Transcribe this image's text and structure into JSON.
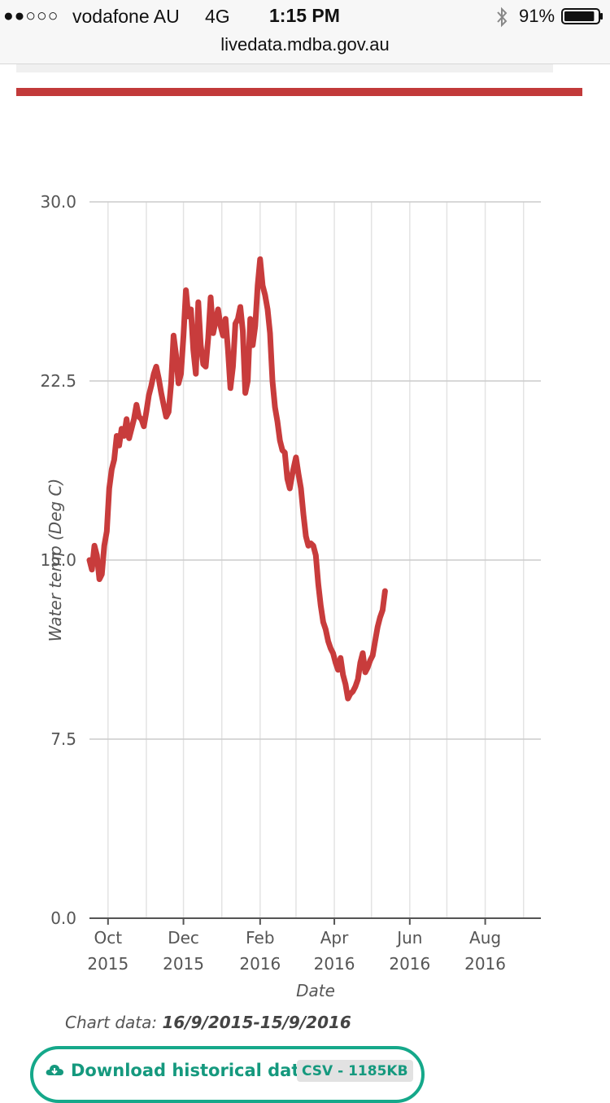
{
  "status_bar": {
    "signal": "●●○○○",
    "carrier": "vodafone AU",
    "network": "4G",
    "time": "1:15 PM",
    "battery": "91%",
    "battery_level": 0.91
  },
  "browser": {
    "url": "livedata.mdba.gov.au"
  },
  "colors": {
    "accent_red": "#c23a3a",
    "line": "#c83c3c",
    "teal": "#15a88a"
  },
  "chart_data": {
    "type": "line",
    "xlabel": "Date",
    "ylabel": "Water temp (Deg C)",
    "ylim": [
      0,
      30
    ],
    "yticks": [
      "0.0",
      "7.5",
      "15.0",
      "22.5",
      "30.0"
    ],
    "xlim": [
      "2015-09-16",
      "2016-09-15"
    ],
    "xticks": [
      {
        "date": "2015-10-01",
        "month": "Oct",
        "year": "2015"
      },
      {
        "date": "2015-12-01",
        "month": "Dec",
        "year": "2015"
      },
      {
        "date": "2016-02-01",
        "month": "Feb",
        "year": "2016"
      },
      {
        "date": "2016-04-01",
        "month": "Apr",
        "year": "2016"
      },
      {
        "date": "2016-06-01",
        "month": "Jun",
        "year": "2016"
      },
      {
        "date": "2016-08-01",
        "month": "Aug",
        "year": "2016"
      }
    ],
    "grid": true,
    "series": [
      {
        "points": [
          [
            "2015-09-16",
            15.0
          ],
          [
            "2015-09-18",
            14.6
          ],
          [
            "2015-09-20",
            15.6
          ],
          [
            "2015-09-22",
            15.2
          ],
          [
            "2015-09-24",
            14.2
          ],
          [
            "2015-09-26",
            14.4
          ],
          [
            "2015-09-28",
            15.6
          ],
          [
            "2015-09-30",
            16.2
          ],
          [
            "2015-10-02",
            18.0
          ],
          [
            "2015-10-04",
            18.8
          ],
          [
            "2015-10-06",
            19.2
          ],
          [
            "2015-10-08",
            20.2
          ],
          [
            "2015-10-10",
            19.8
          ],
          [
            "2015-10-12",
            20.5
          ],
          [
            "2015-10-14",
            20.2
          ],
          [
            "2015-10-16",
            20.9
          ],
          [
            "2015-10-18",
            20.1
          ],
          [
            "2015-10-20",
            20.5
          ],
          [
            "2015-10-22",
            20.9
          ],
          [
            "2015-10-24",
            21.5
          ],
          [
            "2015-10-26",
            21.0
          ],
          [
            "2015-10-28",
            20.9
          ],
          [
            "2015-10-30",
            20.6
          ],
          [
            "2015-11-01",
            21.2
          ],
          [
            "2015-11-03",
            21.9
          ],
          [
            "2015-11-05",
            22.3
          ],
          [
            "2015-11-07",
            22.8
          ],
          [
            "2015-11-09",
            23.1
          ],
          [
            "2015-11-11",
            22.6
          ],
          [
            "2015-11-13",
            22.0
          ],
          [
            "2015-11-15",
            21.5
          ],
          [
            "2015-11-17",
            21.0
          ],
          [
            "2015-11-19",
            21.2
          ],
          [
            "2015-11-21",
            22.4
          ],
          [
            "2015-11-23",
            24.4
          ],
          [
            "2015-11-25",
            23.6
          ],
          [
            "2015-11-27",
            22.4
          ],
          [
            "2015-11-29",
            22.8
          ],
          [
            "2015-12-01",
            24.4
          ],
          [
            "2015-12-03",
            26.3
          ],
          [
            "2015-12-05",
            25.2
          ],
          [
            "2015-12-07",
            25.5
          ],
          [
            "2015-12-09",
            23.8
          ],
          [
            "2015-12-11",
            22.8
          ],
          [
            "2015-12-13",
            25.8
          ],
          [
            "2015-12-15",
            24.0
          ],
          [
            "2015-12-17",
            23.2
          ],
          [
            "2015-12-19",
            23.1
          ],
          [
            "2015-12-21",
            24.3
          ],
          [
            "2015-12-23",
            26.0
          ],
          [
            "2015-12-25",
            24.5
          ],
          [
            "2015-12-27",
            25.0
          ],
          [
            "2015-12-29",
            25.5
          ],
          [
            "2015-12-31",
            24.8
          ],
          [
            "2016-01-02",
            24.4
          ],
          [
            "2016-01-04",
            25.1
          ],
          [
            "2016-01-06",
            23.8
          ],
          [
            "2016-01-08",
            22.2
          ],
          [
            "2016-01-10",
            23.1
          ],
          [
            "2016-01-12",
            24.9
          ],
          [
            "2016-01-14",
            25.1
          ],
          [
            "2016-01-16",
            25.6
          ],
          [
            "2016-01-18",
            24.6
          ],
          [
            "2016-01-20",
            22.0
          ],
          [
            "2016-01-22",
            22.5
          ],
          [
            "2016-01-24",
            25.1
          ],
          [
            "2016-01-26",
            24.0
          ],
          [
            "2016-01-28",
            24.8
          ],
          [
            "2016-01-30",
            26.5
          ],
          [
            "2016-02-01",
            27.6
          ],
          [
            "2016-02-03",
            26.5
          ],
          [
            "2016-02-05",
            26.1
          ],
          [
            "2016-02-07",
            25.5
          ],
          [
            "2016-02-09",
            24.5
          ],
          [
            "2016-02-11",
            22.5
          ],
          [
            "2016-02-13",
            21.4
          ],
          [
            "2016-02-15",
            20.8
          ],
          [
            "2016-02-17",
            20.0
          ],
          [
            "2016-02-19",
            19.6
          ],
          [
            "2016-02-21",
            19.5
          ],
          [
            "2016-02-23",
            18.4
          ],
          [
            "2016-02-25",
            18.0
          ],
          [
            "2016-02-27",
            18.6
          ],
          [
            "2016-03-01",
            19.3
          ],
          [
            "2016-03-03",
            18.6
          ],
          [
            "2016-03-05",
            18.0
          ],
          [
            "2016-03-07",
            16.9
          ],
          [
            "2016-03-09",
            16.0
          ],
          [
            "2016-03-11",
            15.6
          ],
          [
            "2016-03-13",
            15.7
          ],
          [
            "2016-03-15",
            15.6
          ],
          [
            "2016-03-17",
            15.2
          ],
          [
            "2016-03-19",
            14.0
          ],
          [
            "2016-03-21",
            13.1
          ],
          [
            "2016-03-23",
            12.4
          ],
          [
            "2016-03-25",
            12.1
          ],
          [
            "2016-03-27",
            11.6
          ],
          [
            "2016-03-29",
            11.3
          ],
          [
            "2016-03-31",
            11.1
          ],
          [
            "2016-04-02",
            10.7
          ],
          [
            "2016-04-04",
            10.4
          ],
          [
            "2016-04-06",
            10.9
          ],
          [
            "2016-04-08",
            10.2
          ],
          [
            "2016-04-10",
            9.8
          ],
          [
            "2016-04-12",
            9.2
          ],
          [
            "2016-04-14",
            9.4
          ],
          [
            "2016-04-16",
            9.5
          ],
          [
            "2016-04-18",
            9.7
          ],
          [
            "2016-04-20",
            10.0
          ],
          [
            "2016-04-22",
            10.7
          ],
          [
            "2016-04-24",
            11.1
          ],
          [
            "2016-04-26",
            10.3
          ],
          [
            "2016-04-28",
            10.5
          ],
          [
            "2016-04-30",
            10.8
          ],
          [
            "2016-05-02",
            11.0
          ],
          [
            "2016-05-04",
            11.6
          ],
          [
            "2016-05-06",
            12.2
          ],
          [
            "2016-05-08",
            12.6
          ],
          [
            "2016-05-10",
            12.9
          ],
          [
            "2016-05-12",
            13.7
          ]
        ]
      }
    ]
  },
  "chart_footer": {
    "label": "Chart data:",
    "range": "16/9/2015-15/9/2016"
  },
  "download": {
    "label": "Download historical data",
    "badge": "CSV - 1185KB",
    "icon": "cloud-download-icon"
  }
}
